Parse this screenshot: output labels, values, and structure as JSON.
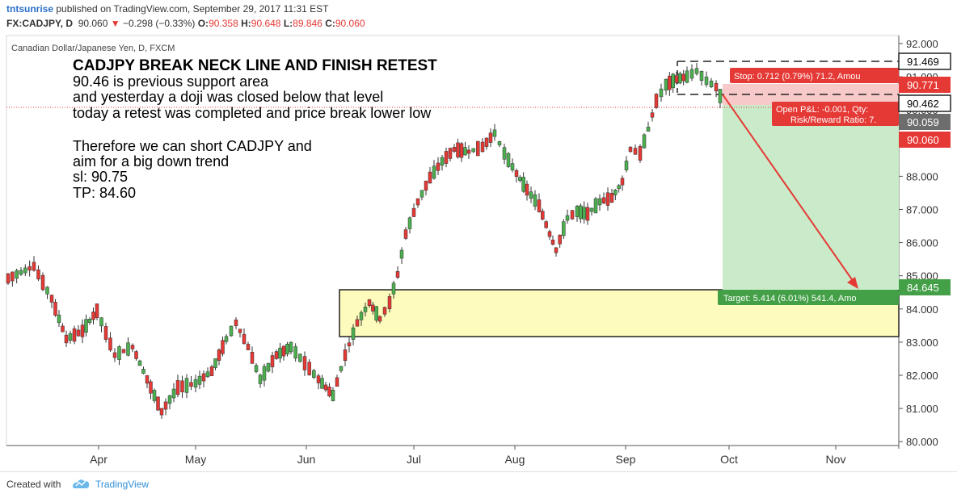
{
  "header": {
    "author": "tntsunrise",
    "published": "published on TradingView.com, September 29, 2017 11:31 EST",
    "symbol": "FX:CADJPY, D",
    "price": "90.060",
    "change_arrow": "▼",
    "change": "−0.298 (−0.33%)",
    "o_label": "O:",
    "o_value": "90.358",
    "h_label": "H:",
    "h_value": "90.648",
    "l_label": "L:",
    "l_value": "89.846",
    "c_label": "C:",
    "c_value": "90.060"
  },
  "chart": {
    "series_title": "Canadian Dollar/Japanese Yen, D, FXCM",
    "annotation_title": "CADJPY BREAK NECK LINE AND FINISH RETEST",
    "annotation_lines": [
      "90.46 is previous support area",
      "and yesterday a doji was closed below that level",
      "today a retest was completed and price break lower low"
    ],
    "annotation_lines2": [
      "Therefore we can short CADJPY and",
      "aim for a big down trend",
      "sl: 90.75",
      "TP: 84.60"
    ],
    "y_ticks": [
      "92.000",
      "91.000",
      "90.000",
      "89.000",
      "88.000",
      "87.000",
      "86.000",
      "85.000",
      "84.000",
      "83.000",
      "82.000",
      "81.000",
      "80.000"
    ],
    "x_ticks": [
      "Apr",
      "May",
      "Jun",
      "Jul",
      "Aug",
      "Sep",
      "Oct",
      "Nov"
    ],
    "price_badges": {
      "box_high": "91.469",
      "stop": "90.771",
      "entry": "90.462",
      "last_close": "90.059",
      "current": "90.060",
      "target": "84.645"
    },
    "stop_label": "Stop: 0.712 (0.79%) 71.2, Amou",
    "open_pl_label": "Open P&L: -0.001, Qty:",
    "rr_label": "Risk/Reward Ratio: 7.",
    "target_label": "Target: 5.414 (6.01%) 541.4, Amo",
    "colors": {
      "up": "#4caf50",
      "down": "#e53935",
      "stop_zone": "#f8c9c9",
      "target_zone": "#c9ebc9",
      "support_zone": "#fdfcbc"
    }
  },
  "footer": {
    "created_with": "Created with",
    "brand": "TradingView"
  }
}
